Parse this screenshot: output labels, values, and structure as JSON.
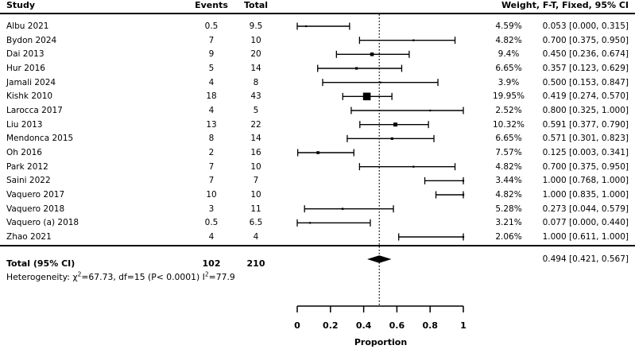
{
  "table": {
    "columns": {
      "study": "Study",
      "events": "Events",
      "total": "Total",
      "right": "Weight, F-T, Fixed, 95% CI"
    }
  },
  "chart_data": {
    "type": "forest",
    "title": "",
    "xlabel": "Proportion",
    "xlim": [
      0,
      1
    ],
    "reference_line": 0.494,
    "axis": {
      "ticks": [
        0,
        0.2,
        0.4,
        0.6,
        0.8,
        1
      ],
      "tick_labels": [
        "0",
        "0.2",
        "0.4",
        "0.6",
        "0.8",
        "1"
      ],
      "xlabel": "Proportion"
    },
    "studies": [
      {
        "study": "Albu 2021",
        "events": "0.5",
        "total": "9.5",
        "weight_pct": 4.59,
        "weight_label": "4.59%",
        "estimate": 0.053,
        "ci_low": 0.0,
        "ci_high": 0.315,
        "ci_label": "0.053 [0.000, 0.315]"
      },
      {
        "study": "Bydon 2024",
        "events": "7",
        "total": "10",
        "weight_pct": 4.82,
        "weight_label": "4.82%",
        "estimate": 0.7,
        "ci_low": 0.375,
        "ci_high": 0.95,
        "ci_label": "0.700 [0.375, 0.950]"
      },
      {
        "study": "Dai 2013",
        "events": "9",
        "total": "20",
        "weight_pct": 9.4,
        "weight_label": "9.4%",
        "estimate": 0.45,
        "ci_low": 0.236,
        "ci_high": 0.674,
        "ci_label": "0.450 [0.236, 0.674]"
      },
      {
        "study": "Hur 2016",
        "events": "5",
        "total": "14",
        "weight_pct": 6.65,
        "weight_label": "6.65%",
        "estimate": 0.357,
        "ci_low": 0.123,
        "ci_high": 0.629,
        "ci_label": "0.357 [0.123, 0.629]"
      },
      {
        "study": "Jamali 2024",
        "events": "4",
        "total": "8",
        "weight_pct": 3.9,
        "weight_label": "3.9%",
        "estimate": 0.5,
        "ci_low": 0.153,
        "ci_high": 0.847,
        "ci_label": "0.500 [0.153, 0.847]"
      },
      {
        "study": "Kishk 2010",
        "events": "18",
        "total": "43",
        "weight_pct": 19.95,
        "weight_label": "19.95%",
        "estimate": 0.419,
        "ci_low": 0.274,
        "ci_high": 0.57,
        "ci_label": "0.419 [0.274, 0.570]"
      },
      {
        "study": "Larocca 2017",
        "events": "4",
        "total": "5",
        "weight_pct": 2.52,
        "weight_label": "2.52%",
        "estimate": 0.8,
        "ci_low": 0.325,
        "ci_high": 1.0,
        "ci_label": "0.800 [0.325, 1.000]"
      },
      {
        "study": "Liu 2013",
        "events": "13",
        "total": "22",
        "weight_pct": 10.32,
        "weight_label": "10.32%",
        "estimate": 0.591,
        "ci_low": 0.377,
        "ci_high": 0.79,
        "ci_label": "0.591 [0.377, 0.790]"
      },
      {
        "study": "Mendonca 2015",
        "events": "8",
        "total": "14",
        "weight_pct": 6.65,
        "weight_label": "6.65%",
        "estimate": 0.571,
        "ci_low": 0.301,
        "ci_high": 0.823,
        "ci_label": "0.571 [0.301, 0.823]"
      },
      {
        "study": "Oh 2016",
        "events": "2",
        "total": "16",
        "weight_pct": 7.57,
        "weight_label": "7.57%",
        "estimate": 0.125,
        "ci_low": 0.003,
        "ci_high": 0.341,
        "ci_label": "0.125 [0.003, 0.341]"
      },
      {
        "study": "Park 2012",
        "events": "7",
        "total": "10",
        "weight_pct": 4.82,
        "weight_label": "4.82%",
        "estimate": 0.7,
        "ci_low": 0.375,
        "ci_high": 0.95,
        "ci_label": "0.700 [0.375, 0.950]"
      },
      {
        "study": "Saini 2022",
        "events": "7",
        "total": "7",
        "weight_pct": 3.44,
        "weight_label": "3.44%",
        "estimate": 1.0,
        "ci_low": 0.768,
        "ci_high": 1.0,
        "ci_label": "1.000 [0.768, 1.000]"
      },
      {
        "study": "Vaquero 2017",
        "events": "10",
        "total": "10",
        "weight_pct": 4.82,
        "weight_label": "4.82%",
        "estimate": 1.0,
        "ci_low": 0.835,
        "ci_high": 1.0,
        "ci_label": "1.000 [0.835, 1.000]"
      },
      {
        "study": "Vaquero 2018",
        "events": "3",
        "total": "11",
        "weight_pct": 5.28,
        "weight_label": "5.28%",
        "estimate": 0.273,
        "ci_low": 0.044,
        "ci_high": 0.579,
        "ci_label": "0.273 [0.044, 0.579]"
      },
      {
        "study": "Vaquero (a) 2018",
        "events": "0.5",
        "total": "6.5",
        "weight_pct": 3.21,
        "weight_label": "3.21%",
        "estimate": 0.077,
        "ci_low": 0.0,
        "ci_high": 0.44,
        "ci_label": "0.077 [0.000, 0.440]"
      },
      {
        "study": "Zhao 2021",
        "events": "4",
        "total": "4",
        "weight_pct": 2.06,
        "weight_label": "2.06%",
        "estimate": 1.0,
        "ci_low": 0.611,
        "ci_high": 1.0,
        "ci_label": "1.000 [0.611, 1.000]"
      }
    ],
    "total_row": {
      "label": "Total (95% CI)",
      "events": "102",
      "total": "210",
      "estimate": 0.494,
      "ci_low": 0.421,
      "ci_high": 0.567,
      "ci_label": "0.494 [0.421, 0.567]"
    },
    "heterogeneity": {
      "part1": "Heterogeneity: χ",
      "sup1": "2",
      "part2": "=67.73, df=15 (P< 0.0001) I",
      "sup2": "2",
      "part3": "=77.9"
    },
    "colors": {
      "foreground": "#000000",
      "background": "#ffffff"
    }
  }
}
